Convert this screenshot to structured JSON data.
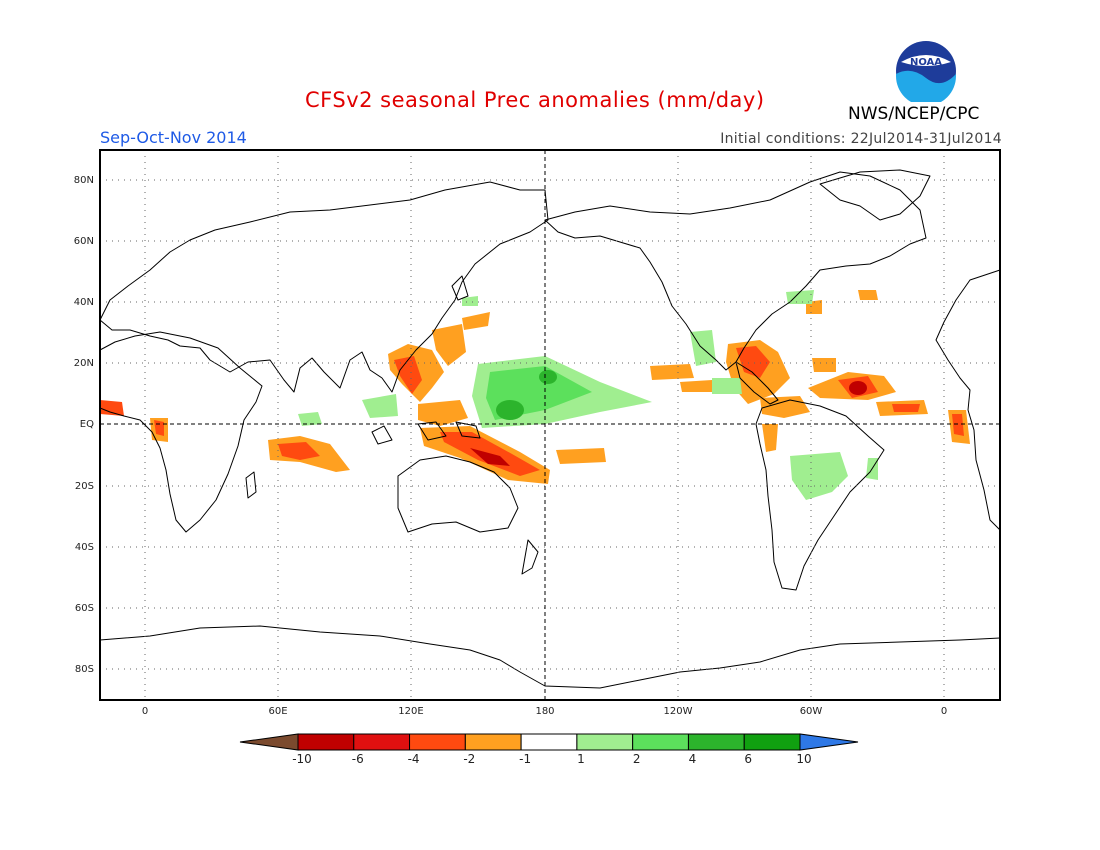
{
  "header": {
    "title": "CFSv2 seasonal Prec anomalies (mm/day)",
    "season": "Sep-Oct-Nov 2014",
    "initial_conditions": "Initial conditions: 22Jul2014-31Jul2014",
    "agency": "NWS/NCEP/CPC",
    "logo_text": "NOAA"
  },
  "map": {
    "lat_ticks": [
      "80N",
      "60N",
      "40N",
      "20N",
      "EQ",
      "20S",
      "40S",
      "60S",
      "80S"
    ],
    "lon_ticks": [
      "0",
      "60E",
      "120E",
      "180",
      "120W",
      "60W",
      "0"
    ],
    "grid": true,
    "reference_lines": [
      "equator",
      "dateline"
    ]
  },
  "colorbar": {
    "labels": [
      "-10",
      "-6",
      "-4",
      "-2",
      "-1",
      "1",
      "2",
      "4",
      "6",
      "10"
    ],
    "colors": [
      "#7b4a2e",
      "#c00000",
      "#e01010",
      "#ff4a10",
      "#ffa020",
      "#ffffff",
      "#a0ee90",
      "#5ce05c",
      "#2cb42c",
      "#10a010",
      "#2e78e6"
    ]
  }
}
